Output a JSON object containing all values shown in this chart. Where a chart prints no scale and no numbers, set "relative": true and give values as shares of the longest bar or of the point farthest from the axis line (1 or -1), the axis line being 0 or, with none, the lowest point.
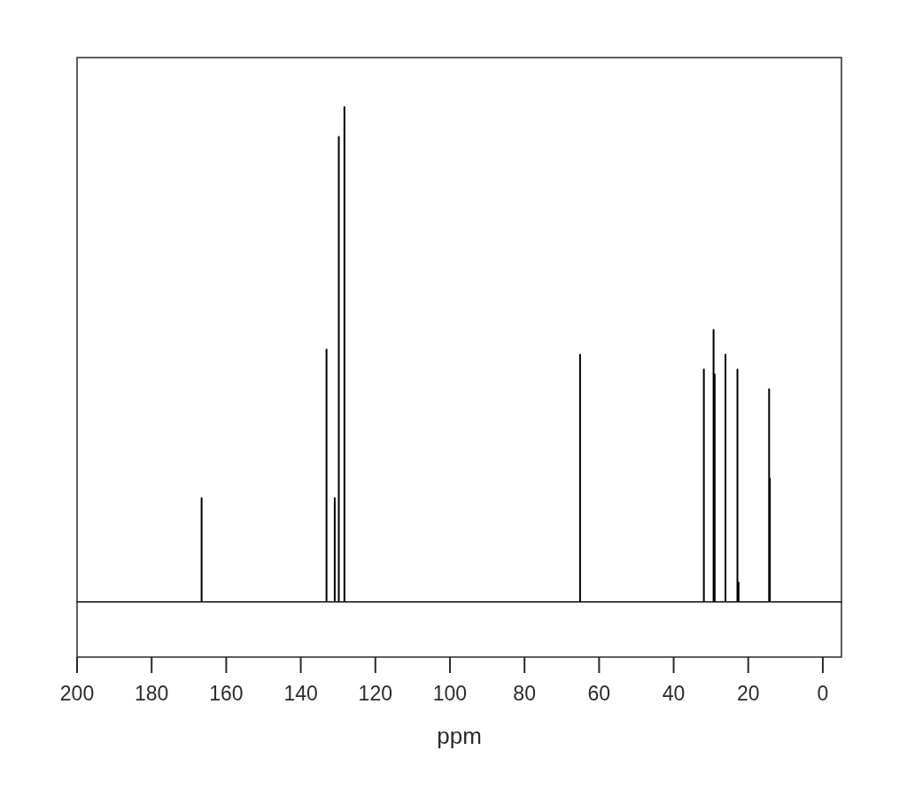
{
  "chart_data": {
    "type": "line",
    "xlabel": "ppm",
    "relative": true,
    "color": "#000000",
    "marker": "none",
    "line_style": "solid",
    "tick_labels": "x",
    "xlim": [
      200,
      -5
    ],
    "xticks": [
      200,
      180,
      160,
      140,
      120,
      100,
      80,
      60,
      40,
      20,
      0
    ],
    "x": [
      200,
      166.6,
      166.6,
      166.6,
      133.1,
      133.1,
      133.1,
      130.9,
      130.9,
      130.9,
      129.8,
      129.8,
      129.8,
      128.3,
      128.3,
      128.3,
      65.1,
      65.1,
      65.1,
      31.9,
      31.9,
      31.9,
      29.3,
      29.3,
      29.3,
      29.0,
      29.0,
      29.0,
      26.1,
      26.1,
      26.1,
      22.9,
      22.9,
      22.9,
      22.6,
      22.6,
      22.6,
      14.4,
      14.4,
      14.4,
      14.2,
      14.2,
      14.2,
      -5
    ],
    "values": [
      0,
      0,
      0.21,
      0,
      0,
      0.51,
      0,
      0,
      0.21,
      0,
      0,
      0.94,
      0,
      0,
      1,
      0,
      0,
      0.5,
      0,
      0,
      0.47,
      0,
      0,
      0.55,
      0,
      0,
      0.46,
      0,
      0,
      0.5,
      0,
      0,
      0.47,
      0,
      0,
      0.04,
      0,
      0,
      0.43,
      0,
      0,
      0.25,
      0,
      0
    ]
  }
}
